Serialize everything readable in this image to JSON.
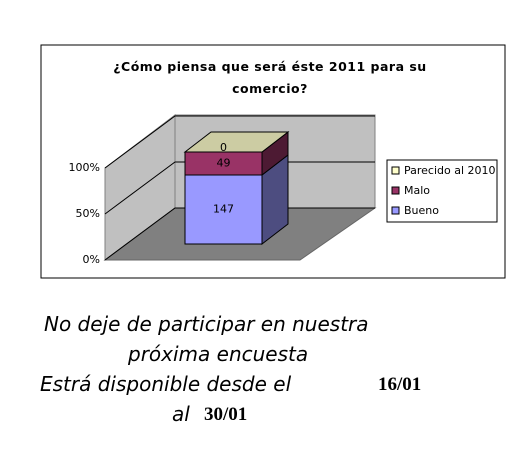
{
  "chart_data": {
    "type": "stacked_percent_bar_3d",
    "title": "¿Cómo piensa que será éste 2011 para su comercio?",
    "categories": [
      null
    ],
    "series": [
      {
        "name": "Bueno",
        "color": "#9999ff",
        "values": [
          147
        ]
      },
      {
        "name": "Malo",
        "color": "#993366",
        "values": [
          49
        ]
      },
      {
        "name": "Parecido al 2010",
        "color": "#ffffcc",
        "values": [
          0
        ]
      }
    ],
    "ylim": [
      0,
      100
    ],
    "yticks": [
      {
        "value": 0,
        "label": "0%"
      },
      {
        "value": 50,
        "label": "50%"
      },
      {
        "value": 100,
        "label": "100%"
      }
    ],
    "grid": true,
    "legend": "right"
  },
  "footer": {
    "line1": "No deje de participar en nuestra",
    "line2": "próxima encuesta",
    "line3": "Estrá disponible desde el",
    "date1": "16/01",
    "line4": "al",
    "date2": "30/01"
  }
}
